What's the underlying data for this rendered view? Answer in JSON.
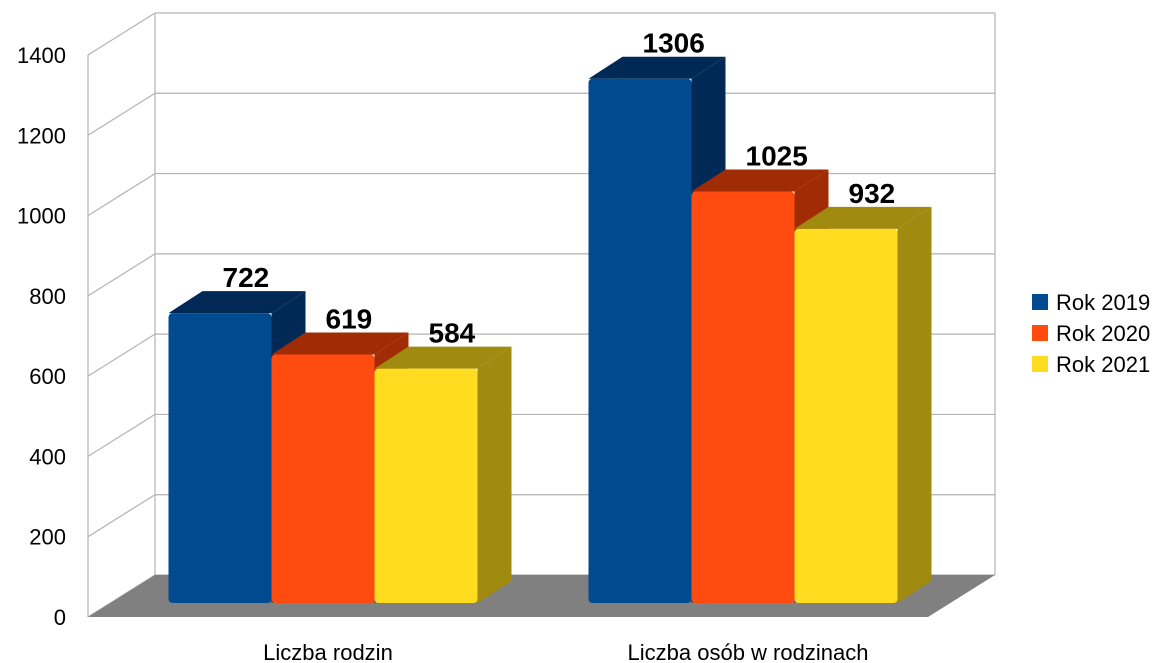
{
  "chart_data": {
    "type": "bar",
    "title": "",
    "xlabel": "",
    "ylabel": "",
    "ylim": [
      0,
      1400
    ],
    "yticks": [
      0,
      200,
      400,
      600,
      800,
      1000,
      1200,
      1400
    ],
    "categories": [
      "Liczba rodzin",
      "Liczba osób w rodzinach"
    ],
    "series": [
      {
        "name": "Rok 2019",
        "values": [
          722,
          1306
        ],
        "color": "#004a8f",
        "dark": "#002a55"
      },
      {
        "name": "Rok 2020",
        "values": [
          619,
          1025
        ],
        "color": "#ff4a10",
        "dark": "#a02c05"
      },
      {
        "name": "Rok 2021",
        "values": [
          584,
          932
        ],
        "color": "#ffdc20",
        "dark": "#a08a10"
      }
    ],
    "grid": true,
    "legend": "right",
    "style": "3d"
  }
}
